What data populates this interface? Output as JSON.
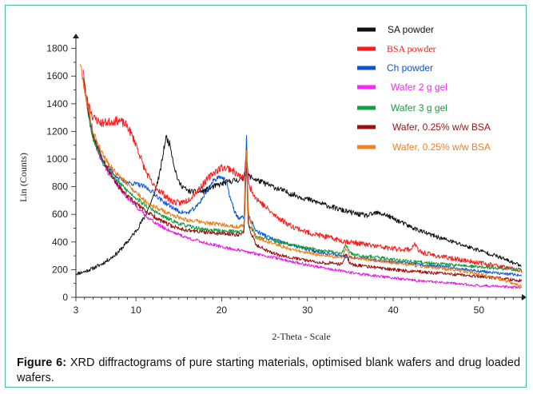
{
  "caption": {
    "label": "Figure 6:",
    "text": "XRD diffractograms of pure starting materials, optimised blank wafers and drug loaded wafers."
  },
  "chart_data": {
    "type": "line",
    "xlabel": "2-Theta - Scale",
    "ylabel": "Lin (Counts)",
    "xlim": [
      3,
      55
    ],
    "ylim": [
      0,
      1850
    ],
    "x_ticks": [
      3,
      10,
      20,
      30,
      40,
      50
    ],
    "y_ticks": [
      0,
      200,
      400,
      600,
      800,
      1000,
      1200,
      1400,
      1600,
      1800
    ],
    "legend_position": "top-right",
    "grid": false,
    "series": [
      {
        "name": "SA powder",
        "color": "#111111",
        "legend_color": "#111111",
        "noise": 18,
        "seed": 11,
        "points": [
          [
            3,
            170
          ],
          [
            4,
            185
          ],
          [
            5,
            210
          ],
          [
            6,
            240
          ],
          [
            7,
            280
          ],
          [
            8,
            330
          ],
          [
            9,
            400
          ],
          [
            10,
            480
          ],
          [
            11,
            580
          ],
          [
            12,
            720
          ],
          [
            12.8,
            900
          ],
          [
            13.5,
            1160
          ],
          [
            14,
            1100
          ],
          [
            14.5,
            940
          ],
          [
            15,
            830
          ],
          [
            16,
            770
          ],
          [
            17,
            760
          ],
          [
            18,
            770
          ],
          [
            19,
            800
          ],
          [
            20,
            820
          ],
          [
            21,
            840
          ],
          [
            22,
            850
          ],
          [
            22.6,
            860
          ],
          [
            22.9,
            1000
          ],
          [
            23.1,
            880
          ],
          [
            24,
            850
          ],
          [
            26,
            800
          ],
          [
            28,
            750
          ],
          [
            30,
            710
          ],
          [
            32,
            670
          ],
          [
            34,
            630
          ],
          [
            36,
            600
          ],
          [
            37,
            590
          ],
          [
            38,
            610
          ],
          [
            39,
            600
          ],
          [
            40,
            570
          ],
          [
            42,
            510
          ],
          [
            44,
            460
          ],
          [
            46,
            420
          ],
          [
            48,
            380
          ],
          [
            50,
            340
          ],
          [
            52,
            300
          ],
          [
            54,
            250
          ],
          [
            55,
            230
          ]
        ]
      },
      {
        "name": "BSA powder",
        "color": "#ff1a1a",
        "legend_color": "#ff1a1a",
        "noise": 22,
        "seed": 23,
        "points": [
          [
            3.8,
            1600
          ],
          [
            4.2,
            1450
          ],
          [
            5,
            1300
          ],
          [
            6,
            1260
          ],
          [
            7,
            1270
          ],
          [
            8,
            1280
          ],
          [
            9,
            1240
          ],
          [
            10,
            1110
          ],
          [
            11,
            930
          ],
          [
            12,
            810
          ],
          [
            13,
            760
          ],
          [
            14,
            700
          ],
          [
            15,
            680
          ],
          [
            16,
            700
          ],
          [
            17,
            760
          ],
          [
            18,
            830
          ],
          [
            19,
            900
          ],
          [
            20,
            940
          ],
          [
            21,
            930
          ],
          [
            22,
            880
          ],
          [
            22.6,
            860
          ],
          [
            22.9,
            1060
          ],
          [
            23.1,
            820
          ],
          [
            24,
            720
          ],
          [
            26,
            600
          ],
          [
            28,
            520
          ],
          [
            30,
            470
          ],
          [
            32,
            440
          ],
          [
            34,
            410
          ],
          [
            36,
            390
          ],
          [
            38,
            370
          ],
          [
            40,
            350
          ],
          [
            42,
            345
          ],
          [
            42.5,
            390
          ],
          [
            43,
            330
          ],
          [
            45,
            300
          ],
          [
            47,
            280
          ],
          [
            50,
            250
          ],
          [
            52,
            230
          ],
          [
            55,
            190
          ]
        ]
      },
      {
        "name": "Ch powder",
        "color": "#0a55d6",
        "legend_color": "#0a55d6",
        "noise": 15,
        "seed": 37,
        "points": [
          [
            4,
            1550
          ],
          [
            4.5,
            1300
          ],
          [
            5,
            1150
          ],
          [
            6,
            1000
          ],
          [
            7,
            920
          ],
          [
            8,
            860
          ],
          [
            9,
            830
          ],
          [
            10,
            820
          ],
          [
            11,
            800
          ],
          [
            12,
            760
          ],
          [
            13,
            700
          ],
          [
            14,
            660
          ],
          [
            15,
            620
          ],
          [
            16,
            610
          ],
          [
            17,
            650
          ],
          [
            18,
            740
          ],
          [
            19,
            840
          ],
          [
            19.8,
            880
          ],
          [
            20.5,
            840
          ],
          [
            21,
            720
          ],
          [
            21.5,
            620
          ],
          [
            22,
            570
          ],
          [
            22.6,
            580
          ],
          [
            22.9,
            1180
          ],
          [
            23.1,
            600
          ],
          [
            24,
            480
          ],
          [
            26,
            420
          ],
          [
            28,
            380
          ],
          [
            30,
            345
          ],
          [
            32,
            320
          ],
          [
            34,
            300
          ],
          [
            36,
            285
          ],
          [
            38,
            270
          ],
          [
            40,
            255
          ],
          [
            42,
            245
          ],
          [
            44,
            230
          ],
          [
            46,
            220
          ],
          [
            48,
            205
          ],
          [
            50,
            190
          ],
          [
            52,
            175
          ],
          [
            55,
            160
          ]
        ]
      },
      {
        "name": "Wafer 2 g gel",
        "color": "#e21ce2",
        "legend_color": "#ff22ff",
        "noise": 14,
        "seed": 41,
        "points": [
          [
            3.8,
            1650
          ],
          [
            4.2,
            1450
          ],
          [
            5,
            1150
          ],
          [
            6,
            980
          ],
          [
            7,
            880
          ],
          [
            8,
            800
          ],
          [
            9,
            720
          ],
          [
            10,
            660
          ],
          [
            11,
            600
          ],
          [
            12,
            550
          ],
          [
            13,
            510
          ],
          [
            14,
            480
          ],
          [
            15,
            455
          ],
          [
            16,
            430
          ],
          [
            18,
            395
          ],
          [
            20,
            365
          ],
          [
            22,
            340
          ],
          [
            24,
            315
          ],
          [
            26,
            290
          ],
          [
            28,
            260
          ],
          [
            30,
            235
          ],
          [
            32,
            210
          ],
          [
            34,
            190
          ],
          [
            36,
            170
          ],
          [
            38,
            155
          ],
          [
            40,
            140
          ],
          [
            42,
            125
          ],
          [
            44,
            115
          ],
          [
            46,
            105
          ],
          [
            48,
            95
          ],
          [
            50,
            85
          ],
          [
            52,
            80
          ],
          [
            55,
            70
          ]
        ]
      },
      {
        "name": "Wafer 3 g gel",
        "color": "#0e9a3e",
        "legend_color": "#11a040",
        "noise": 15,
        "seed": 53,
        "points": [
          [
            4,
            1550
          ],
          [
            4.5,
            1300
          ],
          [
            5,
            1150
          ],
          [
            6,
            1000
          ],
          [
            7,
            900
          ],
          [
            8,
            830
          ],
          [
            9,
            770
          ],
          [
            10,
            720
          ],
          [
            11,
            670
          ],
          [
            12,
            630
          ],
          [
            13,
            590
          ],
          [
            14,
            560
          ],
          [
            15,
            535
          ],
          [
            16,
            515
          ],
          [
            18,
            490
          ],
          [
            20,
            480
          ],
          [
            22,
            475
          ],
          [
            22.6,
            480
          ],
          [
            22.9,
            1020
          ],
          [
            23.1,
            540
          ],
          [
            24,
            440
          ],
          [
            26,
            410
          ],
          [
            28,
            380
          ],
          [
            30,
            355
          ],
          [
            32,
            335
          ],
          [
            34,
            320
          ],
          [
            34.5,
            380
          ],
          [
            35,
            320
          ],
          [
            36,
            305
          ],
          [
            38,
            290
          ],
          [
            40,
            275
          ],
          [
            42,
            260
          ],
          [
            44,
            250
          ],
          [
            46,
            240
          ],
          [
            48,
            230
          ],
          [
            50,
            220
          ],
          [
            52,
            210
          ],
          [
            55,
            200
          ]
        ]
      },
      {
        "name": "Wafer, 0.25% w/w BSA",
        "color": "#9a0e0e",
        "legend_color": "#a01010",
        "noise": 16,
        "seed": 67,
        "points": [
          [
            3.9,
            1600
          ],
          [
            4.3,
            1400
          ],
          [
            5,
            1180
          ],
          [
            6,
            1020
          ],
          [
            7,
            900
          ],
          [
            8,
            800
          ],
          [
            9,
            730
          ],
          [
            10,
            680
          ],
          [
            11,
            630
          ],
          [
            12,
            590
          ],
          [
            13,
            550
          ],
          [
            14,
            520
          ],
          [
            15,
            500
          ],
          [
            16,
            485
          ],
          [
            18,
            470
          ],
          [
            20,
            460
          ],
          [
            22,
            455
          ],
          [
            22.6,
            470
          ],
          [
            22.9,
            1000
          ],
          [
            23.1,
            520
          ],
          [
            24,
            380
          ],
          [
            26,
            320
          ],
          [
            28,
            290
          ],
          [
            30,
            265
          ],
          [
            32,
            250
          ],
          [
            34,
            240
          ],
          [
            34.5,
            310
          ],
          [
            35,
            240
          ],
          [
            36,
            230
          ],
          [
            38,
            215
          ],
          [
            40,
            200
          ],
          [
            42,
            190
          ],
          [
            44,
            180
          ],
          [
            46,
            170
          ],
          [
            48,
            160
          ],
          [
            50,
            150
          ],
          [
            52,
            140
          ],
          [
            55,
            120
          ]
        ]
      },
      {
        "name": "Wafer, 0.25% w/w BSA",
        "color": "#f07a10",
        "legend_color": "#f08020",
        "noise": 16,
        "seed": 79,
        "points": [
          [
            3.5,
            1700
          ],
          [
            4,
            1500
          ],
          [
            5,
            1200
          ],
          [
            6,
            1050
          ],
          [
            7,
            950
          ],
          [
            8,
            880
          ],
          [
            9,
            820
          ],
          [
            10,
            760
          ],
          [
            11,
            700
          ],
          [
            12,
            660
          ],
          [
            13,
            630
          ],
          [
            14,
            600
          ],
          [
            15,
            580
          ],
          [
            16,
            560
          ],
          [
            18,
            540
          ],
          [
            20,
            525
          ],
          [
            22,
            510
          ],
          [
            22.6,
            520
          ],
          [
            22.9,
            1100
          ],
          [
            23.1,
            600
          ],
          [
            24,
            430
          ],
          [
            26,
            390
          ],
          [
            28,
            350
          ],
          [
            30,
            320
          ],
          [
            32,
            300
          ],
          [
            34,
            290
          ],
          [
            34.5,
            350
          ],
          [
            35,
            290
          ],
          [
            36,
            280
          ],
          [
            38,
            265
          ],
          [
            40,
            250
          ],
          [
            42,
            235
          ],
          [
            44,
            220
          ],
          [
            46,
            205
          ],
          [
            48,
            190
          ],
          [
            50,
            170
          ],
          [
            52,
            140
          ],
          [
            55,
            80
          ]
        ]
      }
    ]
  }
}
